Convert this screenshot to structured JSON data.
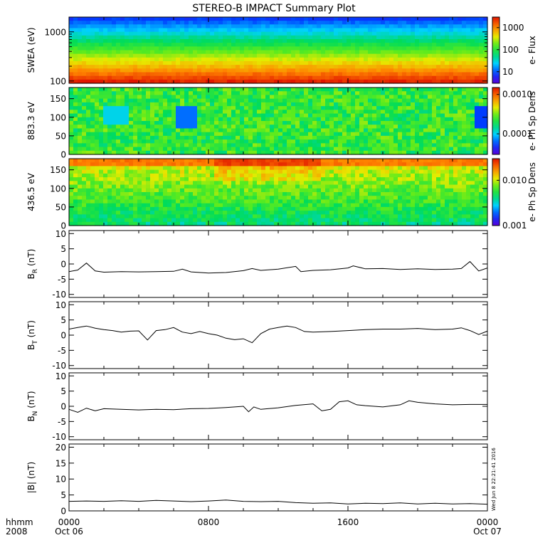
{
  "title": "STEREO-B IMPACT Summary Plot",
  "stamp": "Wed Jun  8 22:21:41 2016",
  "time_axis": {
    "corner_labels": [
      "hhmm",
      "2008"
    ],
    "ticks": [
      {
        "x": 0,
        "lines": [
          "0000",
          "Oct 06"
        ]
      },
      {
        "x": 8,
        "lines": [
          "0800",
          ""
        ]
      },
      {
        "x": 16,
        "lines": [
          "1600",
          ""
        ]
      },
      {
        "x": 24,
        "lines": [
          "0000",
          "Oct 07"
        ]
      }
    ],
    "range_hours": [
      0,
      24
    ]
  },
  "chart_data": [
    {
      "id": "swea",
      "type": "heatmap",
      "ylabel": "SWEA (eV)",
      "yscale": "log",
      "ylim": [
        90,
        2000
      ],
      "yticks": [
        {
          "v": 100,
          "label": "100"
        },
        {
          "v": 1000,
          "label": "1000"
        }
      ],
      "colorbar": {
        "label": "e- Flux",
        "scale": "log",
        "range": [
          3,
          3000
        ],
        "ticks": [
          {
            "v": 10,
            "label": "10"
          },
          {
            "v": 100,
            "label": "100"
          },
          {
            "v": 1000,
            "label": "1000"
          }
        ]
      }
    },
    {
      "id": "pad883",
      "type": "heatmap",
      "ylabel": "883.3 eV",
      "ylim": [
        0,
        180
      ],
      "yticks": [
        {
          "v": 0,
          "label": "0"
        },
        {
          "v": 50,
          "label": "50"
        },
        {
          "v": 100,
          "label": "100"
        },
        {
          "v": 150,
          "label": "150"
        }
      ],
      "colorbar": {
        "label": "e- Ph Sp Dens",
        "scale": "log",
        "range": [
          3e-05,
          0.0015
        ],
        "ticks": [
          {
            "v": 0.0001,
            "label": "0.0001"
          },
          {
            "v": 0.001,
            "label": "0.0010"
          }
        ]
      }
    },
    {
      "id": "pad436",
      "type": "heatmap",
      "ylabel": "436.5 eV",
      "ylim": [
        0,
        180
      ],
      "yticks": [
        {
          "v": 0,
          "label": "0"
        },
        {
          "v": 50,
          "label": "50"
        },
        {
          "v": 100,
          "label": "100"
        },
        {
          "v": 150,
          "label": "150"
        }
      ],
      "colorbar": {
        "label": "e- Ph Sp Dens",
        "scale": "log",
        "range": [
          0.001,
          0.03
        ],
        "ticks": [
          {
            "v": 0.001,
            "label": "0.001"
          },
          {
            "v": 0.01,
            "label": "0.010"
          }
        ]
      }
    },
    {
      "id": "br",
      "type": "line",
      "ylabel": "B",
      "ysub": "R",
      "yunit": " (nT)",
      "ylim": [
        -11,
        11
      ],
      "yticks": [
        {
          "v": -10,
          "label": "-10"
        },
        {
          "v": -5,
          "label": "-5"
        },
        {
          "v": 0,
          "label": "0"
        },
        {
          "v": 5,
          "label": "5"
        },
        {
          "v": 10,
          "label": "10"
        }
      ],
      "x": [
        0,
        0.5,
        1,
        1.5,
        2,
        3,
        4,
        5,
        6,
        6.5,
        7,
        8,
        9,
        10,
        10.5,
        11,
        12,
        13,
        13.3,
        14,
        15,
        16,
        16.3,
        17,
        18,
        19,
        20,
        21,
        22,
        22.5,
        23,
        23.5,
        24
      ],
      "values": [
        -2.5,
        -2.0,
        0.3,
        -2.3,
        -2.7,
        -2.5,
        -2.6,
        -2.5,
        -2.4,
        -1.7,
        -2.6,
        -3.0,
        -2.8,
        -2.2,
        -1.5,
        -2.1,
        -1.7,
        -0.8,
        -2.5,
        -2.1,
        -1.9,
        -1.3,
        -0.6,
        -1.6,
        -1.5,
        -1.8,
        -1.6,
        -1.8,
        -1.7,
        -1.5,
        0.8,
        -2.3,
        -1.3
      ]
    },
    {
      "id": "bt",
      "type": "line",
      "ylabel": "B",
      "ysub": "T",
      "yunit": " (nT)",
      "ylim": [
        -11,
        11
      ],
      "yticks": [
        {
          "v": -10,
          "label": "-10"
        },
        {
          "v": -5,
          "label": "-5"
        },
        {
          "v": 0,
          "label": "0"
        },
        {
          "v": 5,
          "label": "5"
        },
        {
          "v": 10,
          "label": "10"
        }
      ],
      "x": [
        0,
        0.5,
        1,
        1.5,
        2,
        2.5,
        3,
        3.5,
        4,
        4.5,
        5,
        5.5,
        6,
        6.5,
        7,
        7.5,
        8,
        8.5,
        9,
        9.5,
        10,
        10.5,
        11,
        11.5,
        12,
        12.5,
        13,
        13.5,
        14,
        15,
        16,
        17,
        18,
        19,
        20,
        21,
        22,
        22.5,
        23,
        23.5,
        24
      ],
      "values": [
        2.0,
        2.5,
        3.0,
        2.3,
        1.8,
        1.5,
        1.0,
        1.3,
        1.4,
        -1.6,
        1.5,
        1.8,
        2.5,
        1.0,
        0.5,
        1.2,
        0.5,
        0.0,
        -1.0,
        -1.5,
        -1.2,
        -2.5,
        0.5,
        2.0,
        2.5,
        3.0,
        2.5,
        1.2,
        1.0,
        1.2,
        1.5,
        1.8,
        2.0,
        2.0,
        2.2,
        1.8,
        2.0,
        2.4,
        1.5,
        0.2,
        1.3
      ]
    },
    {
      "id": "bn",
      "type": "line",
      "ylabel": "B",
      "ysub": "N",
      "yunit": " (nT)",
      "ylim": [
        -11,
        11
      ],
      "yticks": [
        {
          "v": -10,
          "label": "-10"
        },
        {
          "v": -5,
          "label": "-5"
        },
        {
          "v": 0,
          "label": "0"
        },
        {
          "v": 5,
          "label": "5"
        },
        {
          "v": 10,
          "label": "10"
        }
      ],
      "x": [
        0,
        0.5,
        1,
        1.5,
        2,
        3,
        4,
        5,
        6,
        7,
        8,
        9,
        10,
        10.3,
        10.6,
        11,
        12,
        13,
        14,
        14.5,
        15,
        15.5,
        16,
        16.5,
        17,
        18,
        19,
        19.5,
        20,
        21,
        22,
        23,
        24
      ],
      "values": [
        -1.0,
        -2.0,
        -0.6,
        -1.5,
        -0.8,
        -1.0,
        -1.2,
        -1.0,
        -1.1,
        -0.8,
        -0.7,
        -0.4,
        0.0,
        -1.8,
        -0.2,
        -1.0,
        -0.5,
        0.3,
        0.8,
        -1.5,
        -1.0,
        1.5,
        1.8,
        0.5,
        0.2,
        -0.2,
        0.5,
        1.8,
        1.3,
        0.8,
        0.5,
        0.6,
        0.6
      ]
    },
    {
      "id": "bmag",
      "type": "line",
      "ylabel": "|B| (nT)",
      "ylim": [
        0,
        21
      ],
      "yticks": [
        {
          "v": 0,
          "label": "0"
        },
        {
          "v": 5,
          "label": "5"
        },
        {
          "v": 10,
          "label": "10"
        },
        {
          "v": 15,
          "label": "15"
        },
        {
          "v": 20,
          "label": "20"
        }
      ],
      "x": [
        0,
        1,
        2,
        3,
        4,
        5,
        6,
        7,
        8,
        9,
        10,
        11,
        12,
        13,
        14,
        15,
        16,
        17,
        18,
        19,
        20,
        21,
        22,
        23,
        24
      ],
      "values": [
        3.0,
        3.1,
        3.0,
        3.2,
        3.0,
        3.3,
        3.1,
        2.9,
        3.1,
        3.4,
        3.0,
        2.9,
        3.0,
        2.6,
        2.4,
        2.5,
        2.2,
        2.4,
        2.3,
        2.5,
        2.2,
        2.4,
        2.2,
        2.3,
        2.1
      ]
    }
  ]
}
